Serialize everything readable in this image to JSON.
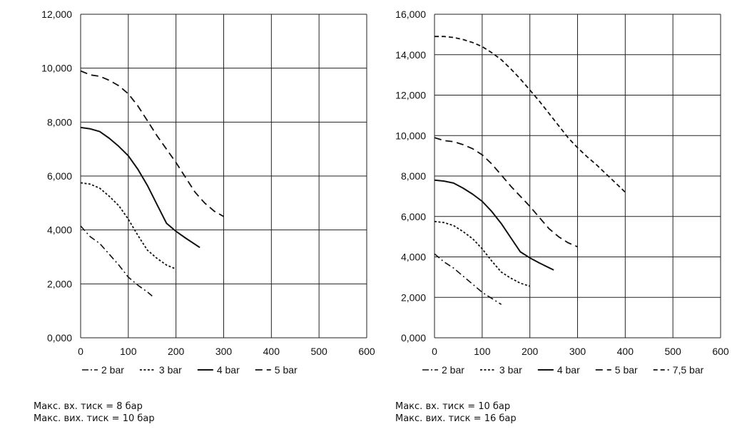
{
  "chart_data": [
    {
      "type": "line",
      "xlim": [
        0,
        600
      ],
      "ylim": [
        0,
        12000
      ],
      "x_ticks": [
        "0",
        "100",
        "200",
        "300",
        "400",
        "500",
        "600"
      ],
      "y_ticks": [
        "0,000",
        "2,000",
        "4,000",
        "6,000",
        "8,000",
        "10,000",
        "12,000"
      ],
      "grid": true,
      "legend_position": "bottom",
      "series": [
        {
          "name": "2 bar",
          "style": "dash-dot",
          "x": [
            0,
            20,
            40,
            50,
            60,
            80,
            100,
            120,
            140,
            150
          ],
          "y": [
            4150,
            3750,
            3500,
            3300,
            3100,
            2700,
            2250,
            1950,
            1700,
            1550
          ]
        },
        {
          "name": "3 bar",
          "style": "dotted",
          "x": [
            0,
            20,
            40,
            60,
            80,
            100,
            120,
            140,
            160,
            180,
            200
          ],
          "y": [
            5750,
            5700,
            5550,
            5250,
            4900,
            4400,
            3800,
            3250,
            2950,
            2700,
            2550
          ]
        },
        {
          "name": "4 bar",
          "style": "solid",
          "x": [
            0,
            20,
            40,
            60,
            80,
            100,
            120,
            140,
            160,
            180,
            200,
            220,
            250
          ],
          "y": [
            7800,
            7750,
            7650,
            7400,
            7100,
            6750,
            6250,
            5650,
            4950,
            4250,
            3950,
            3700,
            3350
          ]
        },
        {
          "name": "5 bar",
          "style": "dashed",
          "x": [
            0,
            20,
            40,
            60,
            80,
            100,
            120,
            140,
            160,
            180,
            200,
            220,
            240,
            260,
            280,
            300
          ],
          "y": [
            9900,
            9750,
            9700,
            9550,
            9350,
            9050,
            8600,
            8050,
            7500,
            7000,
            6500,
            5950,
            5400,
            5000,
            4700,
            4500
          ]
        }
      ]
    },
    {
      "type": "line",
      "xlim": [
        0,
        600
      ],
      "ylim": [
        0,
        16000
      ],
      "x_ticks": [
        "0",
        "100",
        "200",
        "300",
        "400",
        "500",
        "600"
      ],
      "y_ticks": [
        "0,000",
        "2,000",
        "4,000",
        "6,000",
        "8,000",
        "10,000",
        "12,000",
        "14,000",
        "16,000"
      ],
      "grid": true,
      "legend_position": "bottom",
      "series": [
        {
          "name": "2 bar",
          "style": "dash-dot",
          "x": [
            0,
            20,
            40,
            50,
            60,
            80,
            100,
            120,
            140
          ],
          "y": [
            4150,
            3750,
            3450,
            3250,
            3050,
            2650,
            2250,
            1950,
            1650
          ]
        },
        {
          "name": "3 bar",
          "style": "dotted",
          "x": [
            0,
            20,
            40,
            60,
            80,
            100,
            120,
            140,
            160,
            180,
            200
          ],
          "y": [
            5750,
            5700,
            5550,
            5250,
            4900,
            4400,
            3800,
            3250,
            2950,
            2700,
            2550
          ]
        },
        {
          "name": "4 bar",
          "style": "solid",
          "x": [
            0,
            20,
            40,
            60,
            80,
            100,
            120,
            140,
            160,
            180,
            200,
            220,
            250
          ],
          "y": [
            7800,
            7750,
            7650,
            7400,
            7100,
            6750,
            6250,
            5650,
            4950,
            4250,
            3950,
            3700,
            3350
          ]
        },
        {
          "name": "5 bar",
          "style": "dashed",
          "x": [
            0,
            20,
            40,
            60,
            80,
            100,
            120,
            140,
            160,
            180,
            200,
            220,
            240,
            260,
            280,
            300
          ],
          "y": [
            9900,
            9750,
            9700,
            9550,
            9350,
            9050,
            8600,
            8050,
            7500,
            7000,
            6500,
            5950,
            5400,
            5000,
            4700,
            4500
          ]
        },
        {
          "name": "7,5 bar",
          "style": "long-dash",
          "x": [
            0,
            20,
            40,
            60,
            80,
            100,
            120,
            140,
            160,
            180,
            200,
            220,
            240,
            260,
            280,
            300,
            320,
            340,
            360,
            380,
            400
          ],
          "y": [
            14900,
            14900,
            14850,
            14750,
            14600,
            14400,
            14100,
            13750,
            13300,
            12800,
            12250,
            11700,
            11100,
            10500,
            9900,
            9400,
            8950,
            8550,
            8100,
            7650,
            7200
          ]
        }
      ]
    }
  ],
  "notes": {
    "left": {
      "line1": "Макс. вх. тиск = 8 бар",
      "line2": "Макс. вих. тиск = 10 бар"
    },
    "right": {
      "line1": "Макс. вх. тиск = 10 бар",
      "line2": "Макс. вих. тиск = 16 бар"
    }
  },
  "style": {
    "line_color": "#111111",
    "grid_color": "#222222"
  }
}
